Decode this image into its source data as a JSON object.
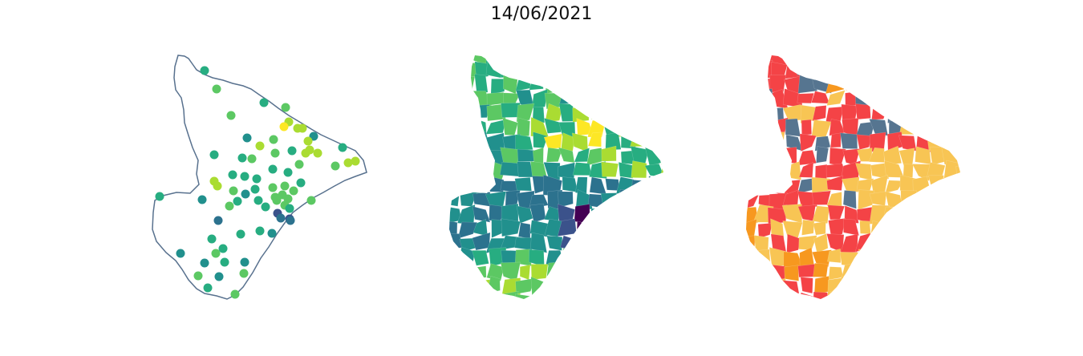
{
  "figure": {
    "title": "14/06/2021"
  },
  "colors": {
    "outline": "#58718e",
    "viridis": [
      "#440154",
      "#3b528b",
      "#2c728e",
      "#21908d",
      "#27ad81",
      "#5cc863",
      "#aadc32",
      "#fde725"
    ],
    "categorical": {
      "red": "#f44346",
      "orange": "#f7981f",
      "yellow": "#f8c554",
      "slate": "#567590"
    }
  },
  "panels": [
    {
      "name": "station-points-map",
      "type": "scatter-on-outline"
    },
    {
      "name": "municipality-choropleth-viridis",
      "type": "choropleth"
    },
    {
      "name": "municipality-choropleth-categories",
      "type": "choropleth"
    }
  ]
}
